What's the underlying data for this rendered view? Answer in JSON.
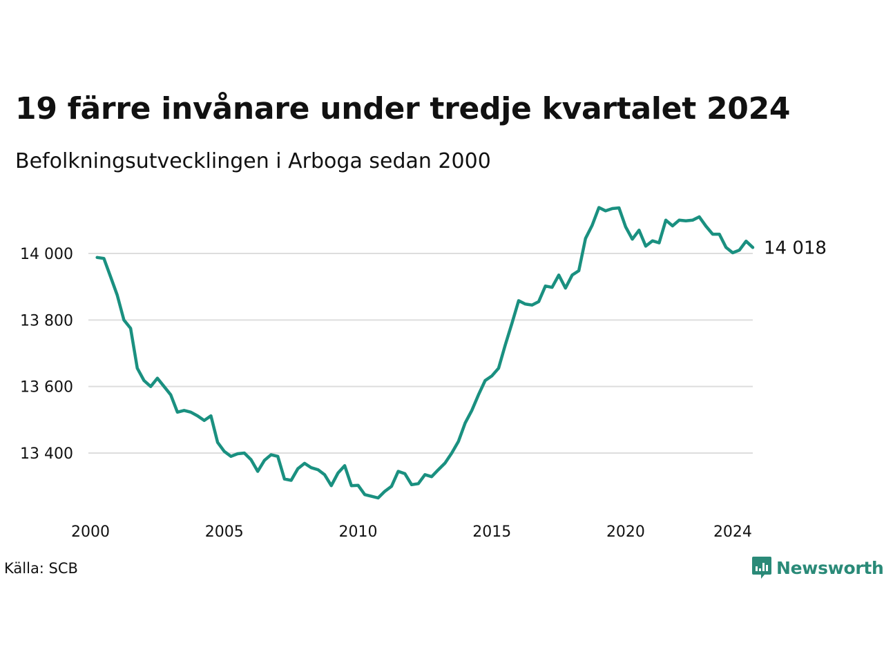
{
  "chart_data": {
    "type": "line",
    "title": "19 färre invånare under tredje kvartalet 2024",
    "subtitle": "Befolkningsutvecklingen i Arboga sedan 2000",
    "source": "Källa: SCB",
    "brand": "Newsworthy",
    "line_color": "#1a9080",
    "grid_color": "#dddddd",
    "brand_color": "#2a8a78",
    "grid": true,
    "xlim": [
      2000,
      2024.75
    ],
    "ylim": [
      13240,
      14160
    ],
    "x_ticks": [
      {
        "value": 2000,
        "label": "2000"
      },
      {
        "value": 2005,
        "label": "2005"
      },
      {
        "value": 2010,
        "label": "2010"
      },
      {
        "value": 2015,
        "label": "2015"
      },
      {
        "value": 2020,
        "label": "2020"
      },
      {
        "value": 2024,
        "label": "2024"
      }
    ],
    "y_ticks": [
      {
        "value": 13400,
        "label": "13 400"
      },
      {
        "value": 13600,
        "label": "13 600"
      },
      {
        "value": 13800,
        "label": "13 800"
      },
      {
        "value": 14000,
        "label": "14 000"
      }
    ],
    "end_label": "14 018",
    "series": [
      {
        "x_start": 2000.25,
        "x_step": 0.25,
        "values": [
          13988,
          13985,
          13930,
          13875,
          13800,
          13775,
          13655,
          13618,
          13600,
          13625,
          13600,
          13575,
          13523,
          13528,
          13523,
          13512,
          13498,
          13512,
          13432,
          13405,
          13390,
          13398,
          13400,
          13380,
          13345,
          13378,
          13395,
          13390,
          13322,
          13318,
          13353,
          13369,
          13356,
          13350,
          13335,
          13302,
          13340,
          13362,
          13302,
          13303,
          13275,
          13270,
          13265,
          13285,
          13300,
          13345,
          13338,
          13305,
          13308,
          13335,
          13329,
          13350,
          13370,
          13400,
          13435,
          13490,
          13528,
          13575,
          13618,
          13632,
          13655,
          13725,
          13790,
          13858,
          13848,
          13845,
          13855,
          13902,
          13898,
          13935,
          13896,
          13935,
          13948,
          14045,
          14085,
          14138,
          14128,
          14135,
          14137,
          14080,
          14043,
          14070,
          14022,
          14038,
          14032,
          14100,
          14083,
          14100,
          14098,
          14100,
          14110,
          14082,
          14058,
          14058,
          14018,
          14002,
          14010,
          14037,
          14018
        ]
      }
    ]
  }
}
